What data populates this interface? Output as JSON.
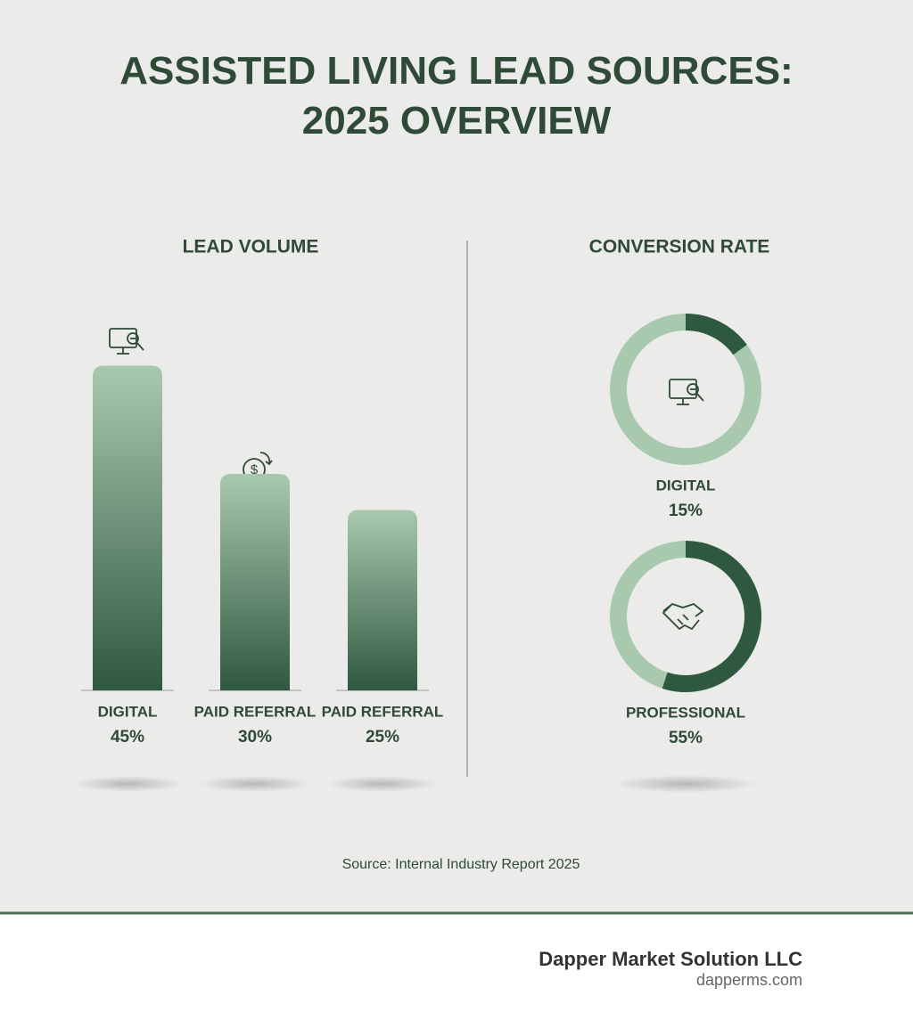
{
  "title": "ASSISTED LIVING LEAD SOURCES: 2025 OVERVIEW",
  "source": "Source: Internal Industry Report 2025",
  "footer": {
    "company": "Dapper Market Solution LLC",
    "website": "dapperms.com"
  },
  "chart_data": [
    {
      "type": "bar",
      "title": "LEAD VOLUME",
      "categories": [
        "DIGITAL",
        "PAID REFERRAL",
        "PAID REFERRAL"
      ],
      "values": [
        45,
        30,
        25
      ],
      "value_labels": [
        "45%",
        "30%",
        "25%"
      ],
      "gradient": [
        "#a9c9af",
        "#2f5840"
      ]
    },
    {
      "type": "donut",
      "title": "CONVERSION RATE",
      "categories": [
        "DIGITAL",
        "PROFESSIONAL"
      ],
      "values": [
        15,
        55
      ],
      "value_labels": [
        "15%",
        "55%"
      ],
      "color": "#2f5840",
      "track_color": "#a9c9af"
    }
  ]
}
